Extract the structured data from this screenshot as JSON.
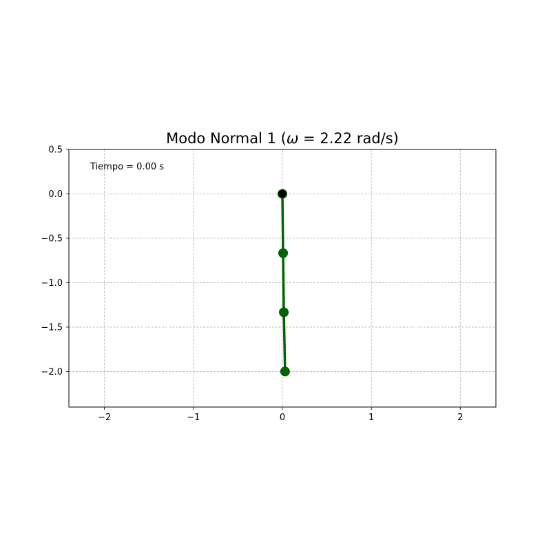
{
  "chart_data": {
    "type": "line",
    "title": "Modo Normal 1 (ω = 2.22 rad/s)",
    "title_prefix": "Modo Normal 1 (",
    "title_symbol": "ω",
    "title_suffix": " = 2.22 rad/s)",
    "xlabel": "",
    "ylabel": "",
    "xlim": [
      -2.4,
      2.4
    ],
    "ylim": [
      -2.4,
      0.5
    ],
    "grid": true,
    "x_ticks": [
      -2,
      -1,
      0,
      1,
      2
    ],
    "x_tick_labels": [
      "−2",
      "−1",
      "0",
      "1",
      "2"
    ],
    "y_ticks": [
      0.5,
      0.0,
      -0.5,
      -1.0,
      -1.5,
      -2.0
    ],
    "y_tick_labels": [
      "0.5",
      "0.0",
      "−0.5",
      "−1.0",
      "−1.5",
      "−2.0"
    ],
    "annotation": "Tiempo = 0.00 s",
    "series": [
      {
        "x": [
          0.0,
          0.008,
          0.016,
          0.03
        ],
        "y": [
          0.0,
          -0.667,
          -1.333,
          -2.0
        ],
        "color": "#006400"
      }
    ],
    "pivot": {
      "x": 0.0,
      "y": 0.0,
      "color": "#000000"
    }
  }
}
